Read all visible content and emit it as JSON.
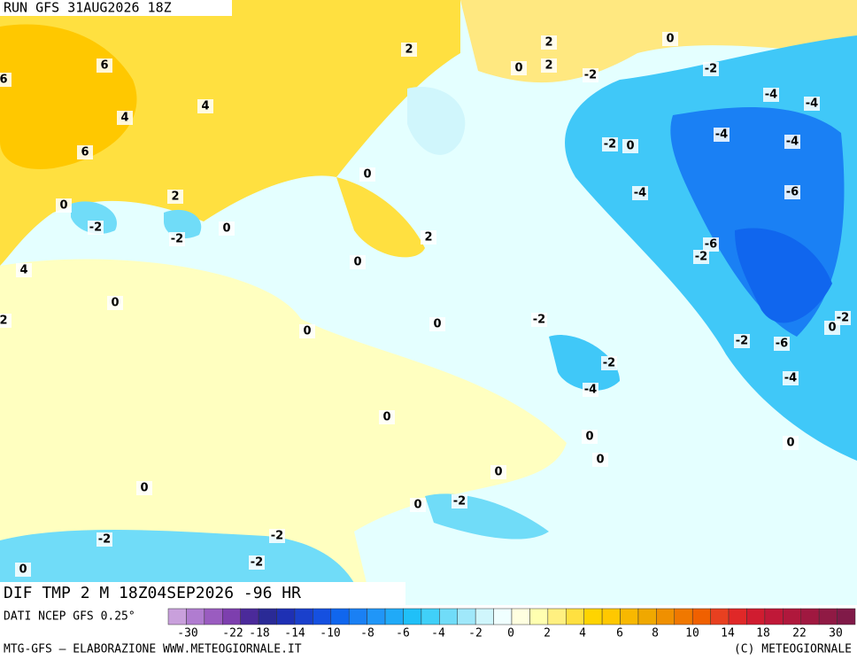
{
  "header": {
    "run": "RUN GFS 31AUG2026 18Z"
  },
  "map": {
    "field_title": "DIF TMP 2 M 18Z04SEP2026 -96 HR",
    "contour_labels": [
      "2",
      "2",
      "0",
      "6",
      "6",
      "0",
      "2",
      "-2",
      "-2",
      "4",
      "4",
      "-4",
      "-4",
      "6",
      "-2",
      "0",
      "-4",
      "-4",
      "0",
      "2",
      "-4",
      "-6",
      "0",
      "-2",
      "-2",
      "0",
      "2",
      "-6",
      "-2",
      "4",
      "0",
      "0",
      "-2",
      "2",
      "-2",
      "0",
      "0",
      "0",
      "-2",
      "-6",
      "-2",
      "-4",
      "-4",
      "0",
      "0",
      "0",
      "0",
      "0",
      "0",
      "-2",
      "0",
      "-2",
      "-2",
      "-2",
      "0"
    ]
  },
  "colorbar": {
    "source": "DATI NCEP GFS 0.25°",
    "colors": [
      "#c9a0dc",
      "#b07cd0",
      "#9a5cc0",
      "#7d3fae",
      "#4b2a9a",
      "#2a2a96",
      "#1e30b4",
      "#1a40cc",
      "#1550e0",
      "#1066ee",
      "#1a80f4",
      "#2096f8",
      "#20aaf8",
      "#20c0f8",
      "#40d0f8",
      "#70dcf8",
      "#a0e8fa",
      "#d0f6fc",
      "#f0ffff",
      "#ffffe0",
      "#ffffb0",
      "#fff080",
      "#ffe040",
      "#ffd400",
      "#ffc800",
      "#f8b800",
      "#f0a800",
      "#f09000",
      "#f07800",
      "#f06000",
      "#e84020",
      "#e02828",
      "#d01c30",
      "#c01838",
      "#b0183c",
      "#a01840",
      "#901a44",
      "#801a48"
    ],
    "labels": [
      -30,
      -22,
      -18,
      -14,
      -10,
      -8,
      -6,
      -4,
      -2,
      0,
      2,
      4,
      6,
      8,
      10,
      14,
      18,
      22,
      30
    ]
  },
  "footer": {
    "credit": "MTG-GFS — ELABORAZIONE WWW.METEOGIORNALE.IT",
    "copyright": "(C) METEOGIORNALE"
  }
}
